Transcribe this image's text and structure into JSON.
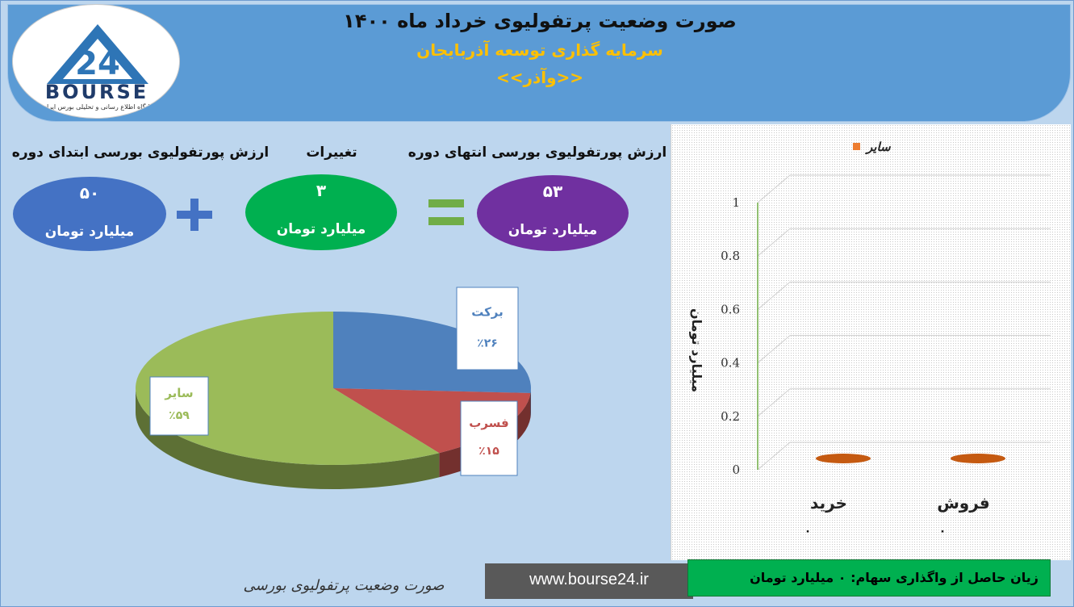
{
  "header": {
    "title": "صورت وضعیت پرتفولیوی خرداد ماه ۱۴۰۰",
    "subtitle": "سرمایه گذاری توسعه آذربایجان",
    "symbol": "<<وآذر>>"
  },
  "logo": {
    "word": "BOURSE",
    "tagline": "پایگاه اطلاع رسانی و تحلیلی بورس ایران"
  },
  "stats": {
    "start_label": "ارزش پورتفولیوی بورسی ابتدای دوره",
    "start_value": "۵۰",
    "change_label": "تغییرات",
    "change_value": "۳",
    "end_label": "ارزش پورتفولیوی بورسی انتهای دوره",
    "end_value": "۵۳",
    "unit": "میلیارد تومان"
  },
  "colors": {
    "start": "#4472c4",
    "change": "#00b050",
    "end": "#7030a0",
    "plus": "#4472c4",
    "equals": "#70ad47"
  },
  "chart_data": [
    {
      "type": "pie",
      "title": "",
      "slices": [
        {
          "label": "برکت",
          "percent_label": "٪۲۶",
          "value": 26,
          "color": "#4f81bd"
        },
        {
          "label": "فسرب",
          "percent_label": "٪۱۵",
          "value": 15,
          "color": "#c0504d"
        },
        {
          "label": "سایر",
          "percent_label": "٪۵۹",
          "value": 59,
          "color": "#9bbb59"
        }
      ]
    },
    {
      "type": "bar",
      "legend": [
        "سایر"
      ],
      "legend_color": "#ed7d31",
      "legend_position": "top-right",
      "categories": [
        "خرید",
        "فروش"
      ],
      "series": [
        {
          "name": "سایر",
          "values": [
            0,
            0
          ]
        }
      ],
      "data_labels": [
        "۰",
        "۰"
      ],
      "ylabel": "میلیارد تومان",
      "ylim": [
        0,
        1
      ],
      "yticks": [
        "0",
        "0.2",
        "0.4",
        "0.6",
        "0.8",
        "1"
      ]
    }
  ],
  "footer": {
    "caption": "صورت وضعیت پرتفولیوی بورسی",
    "url": "www.bourse24.ir",
    "loss_text": "زیان حاصل از واگذاری سهام:  ۰  میلیارد تومان"
  }
}
